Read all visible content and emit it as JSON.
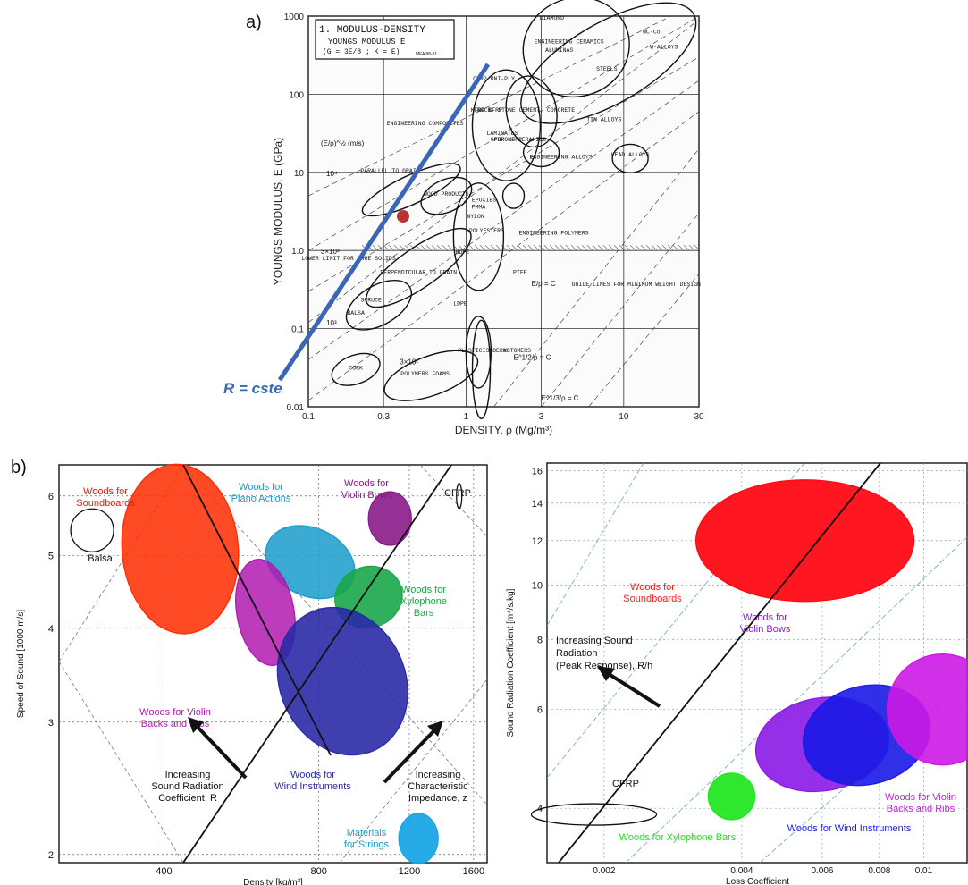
{
  "panel_a_label": "a)",
  "panel_b_label": "b)",
  "chart_data": [
    {
      "type": "scatter",
      "title": "1. MODULUS-DENSITY",
      "subtitle": "YOUNGS MODULUS E",
      "subtitle2": "(G = 3E/8 ; K = E)",
      "stamp": "MFA 88-91",
      "xlabel": "DENSITY, ρ (Mg/m³)",
      "ylabel": "YOUNGS MODULUS, E (GPa)",
      "x_scale": "log",
      "y_scale": "log",
      "xlim": [
        0.1,
        30
      ],
      "ylim": [
        0.01,
        1000
      ],
      "x_ticks": [
        "0.1",
        "0.3",
        "1",
        "3",
        "10",
        "30"
      ],
      "y_ticks": [
        "0.01",
        "0.1",
        "1.0",
        "10",
        "100",
        "1000"
      ],
      "annotation_line_label": "R = cste",
      "families": [
        {
          "label": "ENGINEERING CERAMICS",
          "x": 4.5,
          "y": 450
        },
        {
          "label": "ENGINEERING COMPOSITES",
          "x": 0.55,
          "y": 40
        },
        {
          "label": "ENGINEERING ALLOYS",
          "x": 4.0,
          "y": 15
        },
        {
          "label": "POROUS CERAMICS",
          "x": 2.2,
          "y": 25
        },
        {
          "label": "ENGINEERING POLYMERS",
          "x": 3.6,
          "y": 1.6
        },
        {
          "label": "WOOD PRODUCTS",
          "x": 0.75,
          "y": 5
        },
        {
          "label": "PARALLEL TO GRAIN",
          "x": 0.33,
          "y": 10
        },
        {
          "label": "PERPENDICULAR TO GRAIN",
          "x": 0.5,
          "y": 0.5
        },
        {
          "label": "BALSA",
          "x": 0.2,
          "y": 0.15
        },
        {
          "label": "SPRUCE",
          "x": 0.25,
          "y": 0.22
        },
        {
          "label": "CORK",
          "x": 0.2,
          "y": 0.03
        },
        {
          "label": "POLYMERS FOAMS",
          "x": 0.55,
          "y": 0.025
        },
        {
          "label": "ELASTOMERS",
          "x": 2.0,
          "y": 0.05
        },
        {
          "label": "ROCK, STONE CEMENT, CONCRETE",
          "x": 2.4,
          "y": 60
        },
        {
          "label": "LEAD ALLOYS",
          "x": 11,
          "y": 16
        },
        {
          "label": "TIN ALLOYS",
          "x": 7.5,
          "y": 45
        },
        {
          "label": "STEELS",
          "x": 7.8,
          "y": 200
        },
        {
          "label": "W-ALLOYS",
          "x": 18,
          "y": 380
        },
        {
          "label": "WC-Co",
          "x": 15,
          "y": 600
        },
        {
          "label": "ALUMINAS",
          "x": 3.9,
          "y": 350
        },
        {
          "label": "DIAMOND",
          "x": 3.5,
          "y": 900
        },
        {
          "label": "LAMINATES",
          "x": 1.7,
          "y": 30
        },
        {
          "label": "CFRP UNI-PLY",
          "x": 1.5,
          "y": 150
        },
        {
          "label": "KFRP BFRP",
          "x": 1.35,
          "y": 60
        },
        {
          "label": "GFRP KFRP",
          "x": 1.8,
          "y": 25
        },
        {
          "label": "HDPE",
          "x": 0.95,
          "y": 0.9
        },
        {
          "label": "LDPE",
          "x": 0.92,
          "y": 0.2
        },
        {
          "label": "PTFE",
          "x": 2.2,
          "y": 0.5
        },
        {
          "label": "EPOXIES",
          "x": 1.3,
          "y": 4.2
        },
        {
          "label": "PMMA",
          "x": 1.2,
          "y": 3.4
        },
        {
          "label": "NYLON",
          "x": 1.15,
          "y": 2.6
        },
        {
          "label": "POLYESTERS",
          "x": 1.35,
          "y": 1.7
        },
        {
          "label": "PLASTICISED PVC",
          "x": 1.3,
          "y": 0.05
        },
        {
          "label": "LOWER LIMIT FOR TRUE SOLIDS",
          "x": 0.18,
          "y": 0.75
        },
        {
          "label": "GUIDE LINES FOR MINIMUM WEIGHT DESIGN",
          "x": 12,
          "y": 0.35
        }
      ],
      "guidelines": [
        "E/ρ = C",
        "E^1/2/ρ = C",
        "E^1/3/ρ = C"
      ],
      "speed_labels": [
        "(E/ρ)^½ (m/s)",
        "10⁴",
        "3×10³",
        "10³",
        "3×10²"
      ]
    },
    {
      "type": "scatter",
      "xlabel": "Density [kg/m³]",
      "ylabel": "Speed of Sound [1000 m/s]",
      "x_scale": "log",
      "y_scale": "log",
      "x_ticks": [
        "400",
        "800",
        "1200",
        "1600"
      ],
      "y_ticks": [
        "2",
        "3",
        "4",
        "5",
        "6"
      ],
      "xlim": [
        250,
        1700
      ],
      "ylim": [
        1.95,
        6.6
      ],
      "regions": [
        {
          "name": "Woods for Soundboards",
          "x": 430,
          "y": 5.1,
          "color": "#ff2a00"
        },
        {
          "name": "Woods for Piano Actions",
          "x": 770,
          "y": 4.9,
          "color": "#1a9ccc"
        },
        {
          "name": "Woods for Violin Bows",
          "x": 1100,
          "y": 5.6,
          "color": "#8a1a8a"
        },
        {
          "name": "Woods for Xylophone Bars",
          "x": 1000,
          "y": 4.4,
          "color": "#1aa64a"
        },
        {
          "name": "Woods for Violin Backs and Ribs",
          "x": 630,
          "y": 4.2,
          "color": "#b01ab0"
        },
        {
          "name": "Woods for Wind Instruments",
          "x": 890,
          "y": 3.4,
          "color": "#2a2aa6"
        },
        {
          "name": "Materials for Strings",
          "x": 1250,
          "y": 2.1,
          "color": "#1aa6e6"
        },
        {
          "name": "Balsa",
          "x": 290,
          "y": 5.4,
          "color": "#000000"
        },
        {
          "name": "CFRP",
          "x": 1500,
          "y": 6.0,
          "color": "#000000"
        }
      ],
      "annotations": [
        "Increasing Sound Radiation Coefficient, R",
        "Increasing Characteristic Impedance, z"
      ]
    },
    {
      "type": "scatter",
      "xlabel": "Loss Coefficient",
      "ylabel": "Sound Radiation Coefficient [m⁴/s.kg]",
      "x_scale": "log",
      "y_scale": "log",
      "x_ticks": [
        "0.002",
        "0.004",
        "0.006",
        "0.008",
        "0.01"
      ],
      "y_ticks": [
        "4",
        "6",
        "8",
        "10",
        "12",
        "14",
        "16"
      ],
      "xlim": [
        0.0015,
        0.0125
      ],
      "ylim": [
        3.2,
        16.5
      ],
      "regions": [
        {
          "name": "Woods for Soundboards",
          "x": 0.0055,
          "y": 12,
          "color": "#ff0a14"
        },
        {
          "name": "Woods for Violin Bows",
          "x": 0.006,
          "y": 5.2,
          "color": "#8a1ae6"
        },
        {
          "name": "Woods for Wind Instruments",
          "x": 0.0075,
          "y": 5.4,
          "color": "#1a1ae6"
        },
        {
          "name": "Woods for Violin Backs and Ribs",
          "x": 0.011,
          "y": 6.0,
          "color": "#cc1ae6"
        },
        {
          "name": "Woods for Xylophone Bars",
          "x": 0.0038,
          "y": 4.2,
          "color": "#1ae61a"
        },
        {
          "name": "CFRP",
          "x": 0.0019,
          "y": 3.9,
          "color": "#000000"
        }
      ],
      "annotations": [
        "Increasing Sound Radiation (Peak Response), R/h"
      ]
    }
  ]
}
